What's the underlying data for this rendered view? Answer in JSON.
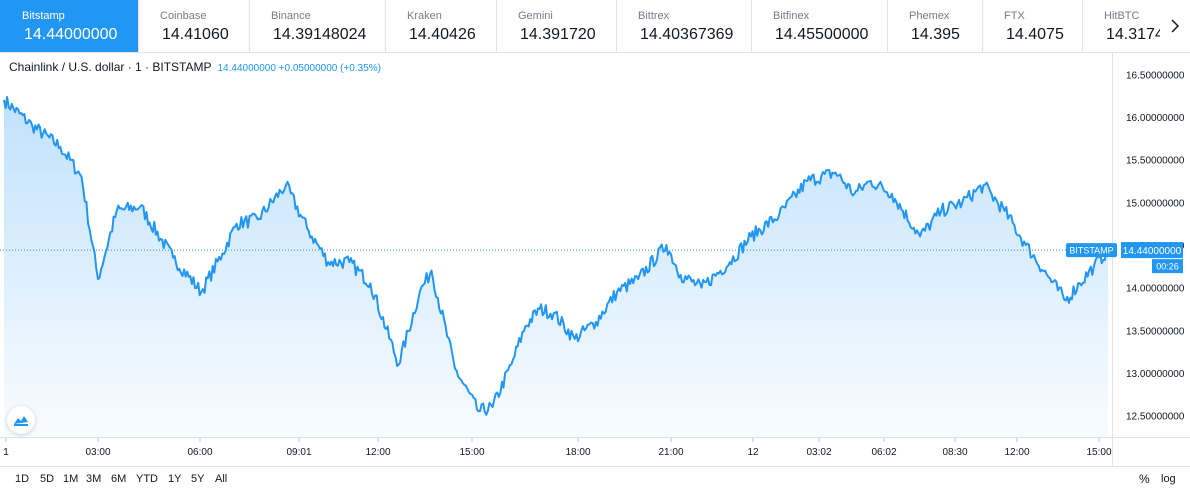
{
  "tickers": [
    {
      "name": "Bitstamp",
      "price": "14.44000000",
      "active": true
    },
    {
      "name": "Coinbase",
      "price": "14.41060"
    },
    {
      "name": "Binance",
      "price": "14.39148024"
    },
    {
      "name": "Kraken",
      "price": "14.40426"
    },
    {
      "name": "Gemini",
      "price": "14.391720"
    },
    {
      "name": "Bittrex",
      "price": "14.40367369"
    },
    {
      "name": "Bitfinex",
      "price": "14.45500000"
    },
    {
      "name": "Phemex",
      "price": "14.395"
    },
    {
      "name": "FTX",
      "price": "14.4075"
    },
    {
      "name": "HitBTC",
      "price": "14.3174"
    }
  ],
  "legend": {
    "symbol": "Chainlink / U.S. dollar · 1 · BITSTAMP",
    "value": "14.44000000 +0.05000000 (+0.35%)"
  },
  "price_tag": {
    "label": "BITSTAMP",
    "price": "14.44000000",
    "countdown": "00:26"
  },
  "ranges": [
    "1D",
    "5D",
    "1M",
    "3M",
    "6M",
    "YTD",
    "1Y",
    "5Y",
    "All"
  ],
  "options": {
    "percent": "%",
    "log": "log"
  },
  "colors": {
    "line": "#2196f3",
    "accent": "#2196f3",
    "text": "#131722",
    "muted": "#787b86"
  },
  "chart_data": {
    "type": "area",
    "ylim": [
      12.25,
      16.75
    ],
    "y_ticks": [
      "16.50000000",
      "16.00000000",
      "15.50000000",
      "15.00000000",
      "14.50000000",
      "14.00000000",
      "13.50000000",
      "13.00000000",
      "12.50000000"
    ],
    "x_tick_labels": [
      "1",
      "03:00",
      "06:00",
      "09:01",
      "12:00",
      "15:00",
      "18:00",
      "21:00",
      "12",
      "03:02",
      "06:02",
      "08:30",
      "12:00",
      "15:00"
    ],
    "x": [
      "00:00",
      "01:00",
      "02:00",
      "02:45",
      "03:20",
      "04:00",
      "04:50",
      "06:00",
      "07:00",
      "07:45",
      "08:15",
      "09:00",
      "10:00",
      "10:45",
      "11:30",
      "12:15",
      "13:00",
      "14:00",
      "14:45",
      "15:10",
      "16:00",
      "16:50",
      "17:20",
      "18:00",
      "18:30",
      "19:00",
      "19:30",
      "20:15",
      "21:00",
      "21:45",
      "22:30",
      "23:30",
      "00:00",
      "00:45",
      "01:45",
      "02:30",
      "03:30",
      "04:30",
      "05:30",
      "06:10",
      "06:45",
      "07:30",
      "08:30",
      "09:15",
      "10:00",
      "10:45",
      "11:30",
      "12:15",
      "13:00",
      "13:40",
      "14:10",
      "14:40",
      "15:10"
    ],
    "values": [
      16.2,
      15.9,
      15.65,
      15.3,
      14.1,
      14.9,
      14.95,
      14.35,
      13.95,
      14.4,
      14.75,
      14.8,
      15.2,
      14.7,
      14.3,
      14.3,
      14.05,
      13.1,
      13.95,
      14.2,
      13.05,
      12.55,
      12.6,
      13.1,
      13.55,
      13.75,
      13.7,
      13.4,
      13.6,
      13.95,
      14.1,
      14.5,
      14.15,
      14.0,
      14.3,
      14.6,
      14.85,
      15.25,
      15.35,
      15.1,
      15.25,
      15.1,
      14.6,
      14.9,
      15.0,
      15.2,
      14.9,
      14.5,
      14.15,
      13.85,
      14.05,
      14.25,
      14.44
    ],
    "grid": true,
    "last_value": 14.44
  }
}
